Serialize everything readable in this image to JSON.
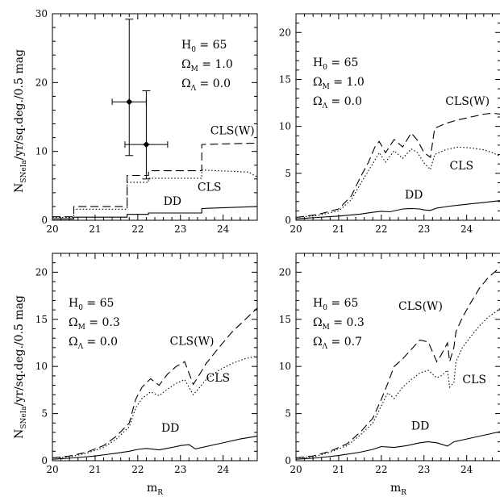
{
  "figure": {
    "ylabel_main": "N",
    "ylabel_sub": "SNeIa",
    "ylabel_rest": "/yr/sq.deg./0.5 mag",
    "xlabel_main": "m",
    "xlabel_sub": "R"
  },
  "chart_data": [
    {
      "type": "line",
      "panel": "top-left",
      "xlim": [
        20,
        24.8
      ],
      "ylim": [
        0,
        30
      ],
      "xticks": [
        20,
        21,
        22,
        23,
        24
      ],
      "yticks": [
        0,
        10,
        20,
        30
      ],
      "annotations": [
        {
          "base": "H",
          "sub": "0",
          "rest": " = 65"
        },
        {
          "base": "Ω",
          "sub": "M",
          "rest": " = 1.0"
        },
        {
          "base": "Ω",
          "sub": "Λ",
          "rest": " = 0.0"
        }
      ],
      "series": [
        {
          "name": "CLS(W)",
          "style": "dashed",
          "x": [
            20,
            20.5,
            20.5,
            21.75,
            21.75,
            22.25,
            22.25,
            23.5,
            23.5,
            24.8
          ],
          "y": [
            0.5,
            0.5,
            2.0,
            2.0,
            6.5,
            6.5,
            7.2,
            7.2,
            11.0,
            11.2
          ],
          "label_at": [
            23.7,
            12.5
          ]
        },
        {
          "name": "CLS",
          "style": "dotted",
          "x": [
            20,
            20.5,
            20.5,
            21.75,
            21.75,
            22.25,
            22.25,
            23.5,
            23.5,
            24.6,
            24.8
          ],
          "y": [
            0.4,
            0.4,
            1.6,
            1.6,
            5.5,
            5.5,
            6.1,
            6.1,
            7.3,
            7.0,
            6.3
          ],
          "label_at": [
            23.4,
            4.3
          ]
        },
        {
          "name": "DD",
          "style": "solid",
          "x": [
            20,
            20.5,
            20.5,
            21.75,
            21.75,
            22.25,
            22.25,
            23.5,
            23.5,
            24.8
          ],
          "y": [
            0.2,
            0.2,
            0.45,
            0.45,
            0.85,
            0.85,
            1.05,
            1.05,
            1.7,
            2.0
          ],
          "label_at": [
            22.6,
            2.2
          ]
        }
      ],
      "points": [
        {
          "x": 21.8,
          "y": 17.2,
          "xerr": 0.4,
          "yerr_low": 7.8,
          "yerr_high": 12.0
        },
        {
          "x": 22.2,
          "y": 11.0,
          "xerr": 0.5,
          "yerr_low": 5.0,
          "yerr_high": 7.8
        }
      ]
    },
    {
      "type": "line",
      "panel": "top-right",
      "xlim": [
        20,
        24.8
      ],
      "ylim": [
        0,
        22
      ],
      "xticks": [
        20,
        21,
        22,
        23,
        24
      ],
      "yticks": [
        0,
        5,
        10,
        15,
        20
      ],
      "annotations": [
        {
          "base": "H",
          "sub": "0",
          "rest": " = 65"
        },
        {
          "base": "Ω",
          "sub": "M",
          "rest": " = 1.0"
        },
        {
          "base": "Ω",
          "sub": "Λ",
          "rest": " = 0.0"
        }
      ],
      "series": [
        {
          "name": "CLS(W)",
          "style": "dashed",
          "x": [
            20,
            20.5,
            21,
            21.3,
            21.5,
            21.7,
            21.85,
            21.95,
            22.1,
            22.3,
            22.5,
            22.7,
            22.85,
            23.0,
            23.15,
            23.25,
            23.5,
            23.8,
            24.1,
            24.4,
            24.6,
            24.8
          ],
          "y": [
            0.3,
            0.6,
            1.2,
            2.6,
            4.5,
            6.2,
            7.8,
            8.4,
            7.2,
            8.6,
            7.8,
            9.3,
            8.5,
            7.2,
            6.7,
            9.8,
            10.3,
            10.7,
            11.0,
            11.3,
            11.4,
            11.3
          ],
          "label_at": [
            23.5,
            12.3
          ]
        },
        {
          "name": "CLS",
          "style": "dotted",
          "x": [
            20,
            20.5,
            21,
            21.3,
            21.5,
            21.7,
            21.85,
            21.95,
            22.1,
            22.3,
            22.5,
            22.7,
            22.85,
            23.0,
            23.15,
            23.25,
            23.5,
            23.8,
            24.1,
            24.4,
            24.6,
            24.8
          ],
          "y": [
            0.3,
            0.5,
            1.0,
            2.2,
            3.8,
            5.3,
            6.4,
            7.2,
            6.2,
            7.4,
            6.6,
            7.6,
            7.2,
            6.1,
            5.4,
            7.0,
            7.5,
            7.8,
            7.7,
            7.5,
            7.2,
            6.8
          ],
          "label_at": [
            23.6,
            5.4
          ]
        },
        {
          "name": "DD",
          "style": "solid",
          "x": [
            20,
            20.5,
            21,
            21.5,
            21.8,
            22.0,
            22.2,
            22.5,
            22.7,
            22.9,
            23.0,
            23.15,
            23.3,
            23.6,
            24.0,
            24.4,
            24.8
          ],
          "y": [
            0.15,
            0.3,
            0.45,
            0.65,
            0.85,
            0.95,
            0.9,
            1.2,
            1.25,
            1.2,
            1.1,
            1.05,
            1.3,
            1.5,
            1.7,
            1.9,
            2.1
          ],
          "label_at": [
            22.55,
            2.3
          ]
        }
      ]
    },
    {
      "type": "line",
      "panel": "bottom-left",
      "xlim": [
        20,
        24.8
      ],
      "ylim": [
        0,
        22
      ],
      "xticks": [
        20,
        21,
        22,
        23,
        24
      ],
      "yticks": [
        0,
        5,
        10,
        15,
        20
      ],
      "annotations": [
        {
          "base": "H",
          "sub": "0",
          "rest": " = 65"
        },
        {
          "base": "Ω",
          "sub": "M",
          "rest": " = 0.3"
        },
        {
          "base": "Ω",
          "sub": "Λ",
          "rest": " = 0.0"
        }
      ],
      "series": [
        {
          "name": "CLS(W)",
          "style": "dashed",
          "x": [
            20,
            20.4,
            20.8,
            21.2,
            21.5,
            21.8,
            21.95,
            22.1,
            22.3,
            22.5,
            22.7,
            22.9,
            23.1,
            23.3,
            23.4,
            23.6,
            23.9,
            24.2,
            24.5,
            24.8
          ],
          "y": [
            0.3,
            0.5,
            0.9,
            1.6,
            2.6,
            4.0,
            6.5,
            7.8,
            8.7,
            8.0,
            9.2,
            10.0,
            10.5,
            8.1,
            8.8,
            10.3,
            12.0,
            13.6,
            14.9,
            16.2
          ],
          "label_at": [
            22.75,
            12.3
          ]
        },
        {
          "name": "CLS",
          "style": "dotted",
          "x": [
            20,
            20.4,
            20.8,
            21.2,
            21.5,
            21.8,
            21.95,
            22.1,
            22.3,
            22.5,
            22.7,
            22.9,
            23.1,
            23.3,
            23.4,
            23.6,
            23.9,
            24.2,
            24.5,
            24.8
          ],
          "y": [
            0.3,
            0.4,
            0.8,
            1.4,
            2.3,
            3.6,
            5.6,
            6.6,
            7.3,
            6.9,
            7.6,
            8.2,
            8.6,
            7.0,
            7.5,
            8.6,
            9.6,
            10.3,
            10.8,
            11.1
          ],
          "label_at": [
            23.6,
            8.4
          ]
        },
        {
          "name": "DD",
          "style": "solid",
          "x": [
            20,
            20.5,
            21,
            21.5,
            21.8,
            22.0,
            22.2,
            22.5,
            22.8,
            23.0,
            23.2,
            23.35,
            23.5,
            23.8,
            24.1,
            24.4,
            24.8
          ],
          "y": [
            0.15,
            0.3,
            0.5,
            0.8,
            1.0,
            1.2,
            1.3,
            1.15,
            1.4,
            1.6,
            1.7,
            1.25,
            1.4,
            1.7,
            2.0,
            2.3,
            2.6
          ],
          "label_at": [
            22.55,
            3.1
          ]
        }
      ]
    },
    {
      "type": "line",
      "panel": "bottom-right",
      "xlim": [
        20,
        24.8
      ],
      "ylim": [
        0,
        22
      ],
      "xticks": [
        20,
        21,
        22,
        23,
        24
      ],
      "yticks": [
        0,
        5,
        10,
        15,
        20
      ],
      "annotations": [
        {
          "base": "H",
          "sub": "0",
          "rest": " = 65"
        },
        {
          "base": "Ω",
          "sub": "M",
          "rest": " = 0.3"
        },
        {
          "base": "Ω",
          "sub": "Λ",
          "rest": " = 0.7"
        }
      ],
      "series": [
        {
          "name": "CLS(W)",
          "style": "dashed",
          "x": [
            20,
            20.4,
            20.8,
            21.2,
            21.5,
            21.8,
            22.0,
            22.15,
            22.3,
            22.5,
            22.7,
            22.9,
            23.1,
            23.3,
            23.4,
            23.55,
            23.6,
            23.7,
            23.75,
            23.9,
            24.1,
            24.3,
            24.5,
            24.8
          ],
          "y": [
            0.3,
            0.5,
            1.0,
            1.8,
            3.0,
            4.5,
            6.5,
            8.2,
            10.0,
            10.8,
            11.8,
            12.8,
            12.6,
            10.5,
            11.2,
            12.5,
            10.5,
            12.0,
            13.7,
            15.2,
            16.8,
            18.3,
            19.4,
            20.6
          ],
          "label_at": [
            22.4,
            16.0
          ]
        },
        {
          "name": "CLS",
          "style": "dotted",
          "x": [
            20,
            20.4,
            20.8,
            21.2,
            21.5,
            21.8,
            22.0,
            22.15,
            22.3,
            22.5,
            22.7,
            22.9,
            23.1,
            23.3,
            23.4,
            23.55,
            23.6,
            23.7,
            23.75,
            23.9,
            24.1,
            24.3,
            24.5,
            24.8
          ],
          "y": [
            0.3,
            0.4,
            0.9,
            1.6,
            2.7,
            4.0,
            5.8,
            7.2,
            6.6,
            7.8,
            8.6,
            9.3,
            9.6,
            8.8,
            9.0,
            9.6,
            7.8,
            8.3,
            10.5,
            12.0,
            13.2,
            14.3,
            15.2,
            16.2
          ],
          "label_at": [
            23.9,
            8.2
          ]
        },
        {
          "name": "DD",
          "style": "solid",
          "x": [
            20,
            20.5,
            21,
            21.5,
            21.8,
            22.0,
            22.3,
            22.6,
            22.9,
            23.1,
            23.3,
            23.55,
            23.7,
            24.0,
            24.3,
            24.6,
            24.8
          ],
          "y": [
            0.15,
            0.3,
            0.55,
            0.9,
            1.2,
            1.5,
            1.4,
            1.6,
            1.9,
            2.0,
            1.9,
            1.55,
            2.0,
            2.3,
            2.6,
            2.9,
            3.1
          ],
          "label_at": [
            22.7,
            3.3
          ]
        }
      ]
    }
  ]
}
